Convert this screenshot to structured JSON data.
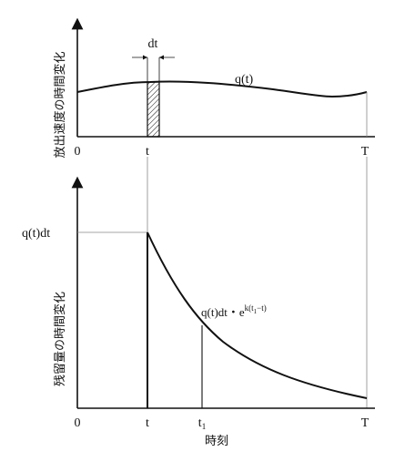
{
  "top_panel": {
    "ylabel": "放出速度の時間変化",
    "curve_label": "q(t)",
    "width_label": "dt",
    "x_ticks": {
      "origin": "0",
      "t": "t",
      "end": "T"
    }
  },
  "bottom_panel": {
    "ylabel": "残留量の時間変化",
    "initial_label": "q(t)dt",
    "decay_label": "q(t)dt・e",
    "decay_exponent": "k(t",
    "decay_exponent_sub": "1",
    "decay_exponent_tail": "−t)",
    "x_ticks": {
      "origin": "0",
      "t": "t",
      "t1": "t",
      "t1_sub": "1",
      "end": "T"
    },
    "xlabel": "時刻"
  },
  "colors": {
    "ink": "#111111",
    "guide": "#888888"
  }
}
